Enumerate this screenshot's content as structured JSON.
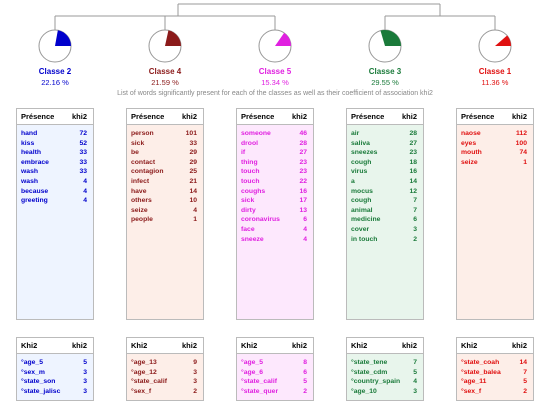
{
  "subtitle": "List of words significantly present for each of the classes as well as their coefficient of association khi2",
  "classes": [
    {
      "name": "Classe 2",
      "percent": "22.16 %",
      "color": "#0000cc",
      "bg": "#eef4ff",
      "words_header": [
        "Présence",
        "khi2"
      ],
      "words": [
        [
          "hand",
          72
        ],
        [
          "kiss",
          52
        ],
        [
          "health",
          33
        ],
        [
          "embrace",
          33
        ],
        [
          "wash",
          33
        ],
        [
          "wash",
          4
        ],
        [
          "because",
          4
        ],
        [
          "greeting",
          4
        ]
      ],
      "vars_header": [
        "Khi2",
        "khi2"
      ],
      "vars": [
        [
          "°age_5",
          5
        ],
        [
          "°sex_m",
          3
        ],
        [
          "°state_son",
          3
        ],
        [
          "°state_jalisc",
          3
        ]
      ]
    },
    {
      "name": "Classe 4",
      "percent": "21.59 %",
      "color": "#8b1a1a",
      "bg": "#fdeee8",
      "words_header": [
        "Présence",
        "khi2"
      ],
      "words": [
        [
          "person",
          101
        ],
        [
          "sick",
          33
        ],
        [
          "be",
          29
        ],
        [
          "contact",
          29
        ],
        [
          "contagion",
          25
        ],
        [
          "infect",
          21
        ],
        [
          "have",
          14
        ],
        [
          "others",
          10
        ],
        [
          "seize",
          4
        ],
        [
          "people",
          1
        ]
      ],
      "vars_header": [
        "Khi2",
        "khi2"
      ],
      "vars": [
        [
          "°age_13",
          9
        ],
        [
          "°age_12",
          3
        ],
        [
          "°state_calif",
          3
        ],
        [
          "°sex_f",
          2
        ]
      ]
    },
    {
      "name": "Classe 5",
      "percent": "15.34 %",
      "color": "#e020e0",
      "bg": "#fde8fd",
      "words_header": [
        "Présence",
        "khi2"
      ],
      "words": [
        [
          "someone",
          46
        ],
        [
          "drool",
          28
        ],
        [
          "if",
          27
        ],
        [
          "thing",
          23
        ],
        [
          "touch",
          23
        ],
        [
          "touch",
          22
        ],
        [
          "coughs",
          16
        ],
        [
          "sick",
          17
        ],
        [
          "dirty",
          13
        ],
        [
          "coronavirus",
          6
        ],
        [
          "face",
          4
        ],
        [
          "sneeze",
          4
        ]
      ],
      "vars_header": [
        "Khi2",
        "khi2"
      ],
      "vars": [
        [
          "°age_5",
          8
        ],
        [
          "°age_6",
          6
        ],
        [
          "°state_calif",
          5
        ],
        [
          "°state_quer",
          2
        ]
      ]
    },
    {
      "name": "Classe 3",
      "percent": "29.55 %",
      "color": "#1a7a3a",
      "bg": "#e8f5ec",
      "words_header": [
        "Présence",
        "khi2"
      ],
      "words": [
        [
          "air",
          28
        ],
        [
          "saliva",
          27
        ],
        [
          "sneezes",
          23
        ],
        [
          "cough",
          18
        ],
        [
          "virus",
          16
        ],
        [
          "a",
          14
        ],
        [
          "mocus",
          12
        ],
        [
          "cough",
          7
        ],
        [
          "animal",
          7
        ],
        [
          "medicine",
          6
        ],
        [
          "cover",
          3
        ],
        [
          "in touch",
          2
        ]
      ],
      "vars_header": [
        "Khi2",
        "khi2"
      ],
      "vars": [
        [
          "°state_tene",
          7
        ],
        [
          "°state_cdm",
          5
        ],
        [
          "°country_spain",
          4
        ],
        [
          "°age_10",
          3
        ]
      ]
    },
    {
      "name": "Classe 1",
      "percent": "11.36 %",
      "color": "#e01010",
      "bg": "#fdeee8",
      "words_header": [
        "Présence",
        "khi2"
      ],
      "words": [
        [
          "naose",
          112
        ],
        [
          "eyes",
          100
        ],
        [
          "mouth",
          74
        ],
        [
          "seize",
          1
        ]
      ],
      "vars_header": [
        "Khi2",
        "khi2"
      ],
      "vars": [
        [
          "°state_coah",
          14
        ],
        [
          "°state_balea",
          7
        ],
        [
          "°age_11",
          5
        ],
        [
          "°sex_f",
          2
        ]
      ]
    }
  ]
}
